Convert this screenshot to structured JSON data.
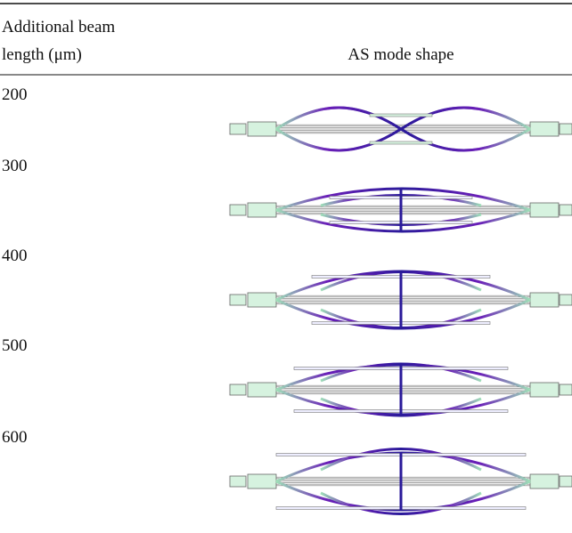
{
  "table": {
    "header": {
      "column_1": [
        "Additional beam",
        "length (μm)"
      ],
      "column_2": "AS mode shape"
    },
    "rows": [
      [
        "200"
      ],
      [
        "300"
      ],
      [
        "400"
      ],
      [
        "500"
      ],
      [
        "600"
      ]
    ]
  }
}
